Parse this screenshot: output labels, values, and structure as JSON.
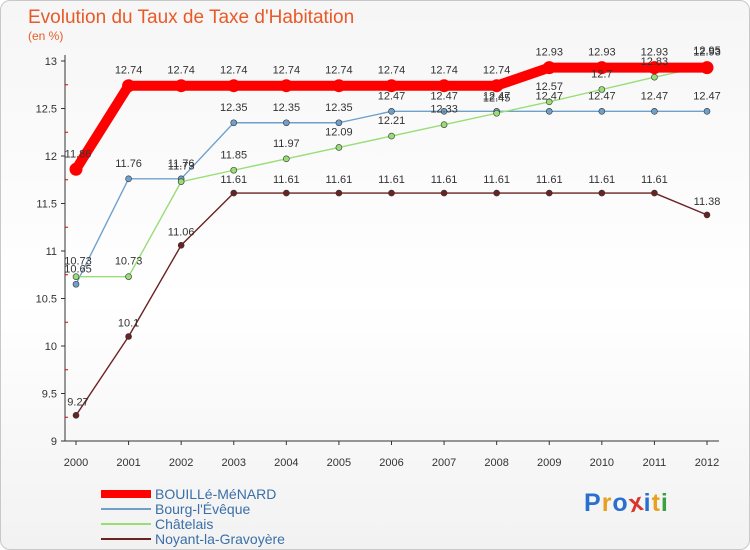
{
  "header": {
    "title": "Evolution du Taux de Taxe d'Habitation",
    "unit": "(en %)"
  },
  "logo": {
    "text": "Proxiti"
  },
  "colors": {
    "bouille": "#ff0000",
    "bourg": "#6fa0cc",
    "chatelais": "#99dd77",
    "noyant": "#6b2222",
    "title": "#e85a28",
    "legend_text": "#3a6fa8"
  },
  "chart_data": {
    "type": "line",
    "x": [
      2000,
      2001,
      2002,
      2003,
      2004,
      2005,
      2006,
      2007,
      2008,
      2009,
      2010,
      2011,
      2012
    ],
    "ylim": [
      9,
      13
    ],
    "yticks": [
      9,
      9.5,
      10,
      10.5,
      11,
      11.5,
      12,
      12.5,
      13
    ],
    "ytick_labels": [
      "9",
      "9.5",
      "10",
      "10.5",
      "11",
      "11.5",
      "12",
      "12.5",
      "13"
    ],
    "grid": false,
    "legend_position": "bottom-left",
    "series": [
      {
        "name": "BOUILLé-MéNARD",
        "color": "#ff0000",
        "values": [
          11.86,
          12.74,
          12.74,
          12.74,
          12.74,
          12.74,
          12.74,
          12.74,
          12.74,
          12.93,
          12.93,
          12.93,
          12.93
        ],
        "labels": [
          "11.86",
          "12.74",
          "12.74",
          "12.74",
          "12.74",
          "12.74",
          "12.74",
          "12.74",
          "12.74",
          "12.93",
          "12.93",
          "12.93",
          "12.93"
        ]
      },
      {
        "name": "Bourg-l'Évêque",
        "color": "#6fa0cc",
        "values": [
          10.65,
          11.76,
          11.76,
          12.35,
          12.35,
          12.35,
          12.47,
          12.47,
          12.47,
          12.47,
          12.47,
          12.47,
          12.47
        ],
        "labels": [
          "10.65",
          "11.76",
          "11.76",
          "12.35",
          "12.35",
          "12.35",
          "12.47",
          "12.47",
          "12.47",
          "12.47",
          "12.47",
          "12.47",
          "12.47"
        ]
      },
      {
        "name": "Châtelais",
        "color": "#99dd77",
        "values": [
          10.73,
          10.73,
          11.73,
          11.85,
          11.97,
          12.09,
          12.21,
          12.33,
          12.45,
          12.57,
          12.7,
          12.83,
          12.95
        ],
        "labels": [
          "10.73",
          "10.73",
          "11.73",
          "11.85",
          "11.97",
          "12.09",
          "12.21",
          "12.33",
          "12.45",
          "12.57",
          "12.7",
          "12.83",
          "12.95"
        ]
      },
      {
        "name": "Noyant-la-Gravoyère",
        "color": "#6b2222",
        "values": [
          9.27,
          10.1,
          11.06,
          11.61,
          11.61,
          11.61,
          11.61,
          11.61,
          11.61,
          11.61,
          11.61,
          11.61,
          11.38
        ],
        "labels": [
          "9.27",
          "10.1",
          "11.06",
          "11.61",
          "11.61",
          "11.61",
          "11.61",
          "11.61",
          "11.61",
          "11.61",
          "11.61",
          "11.61",
          "11.38"
        ]
      }
    ]
  }
}
